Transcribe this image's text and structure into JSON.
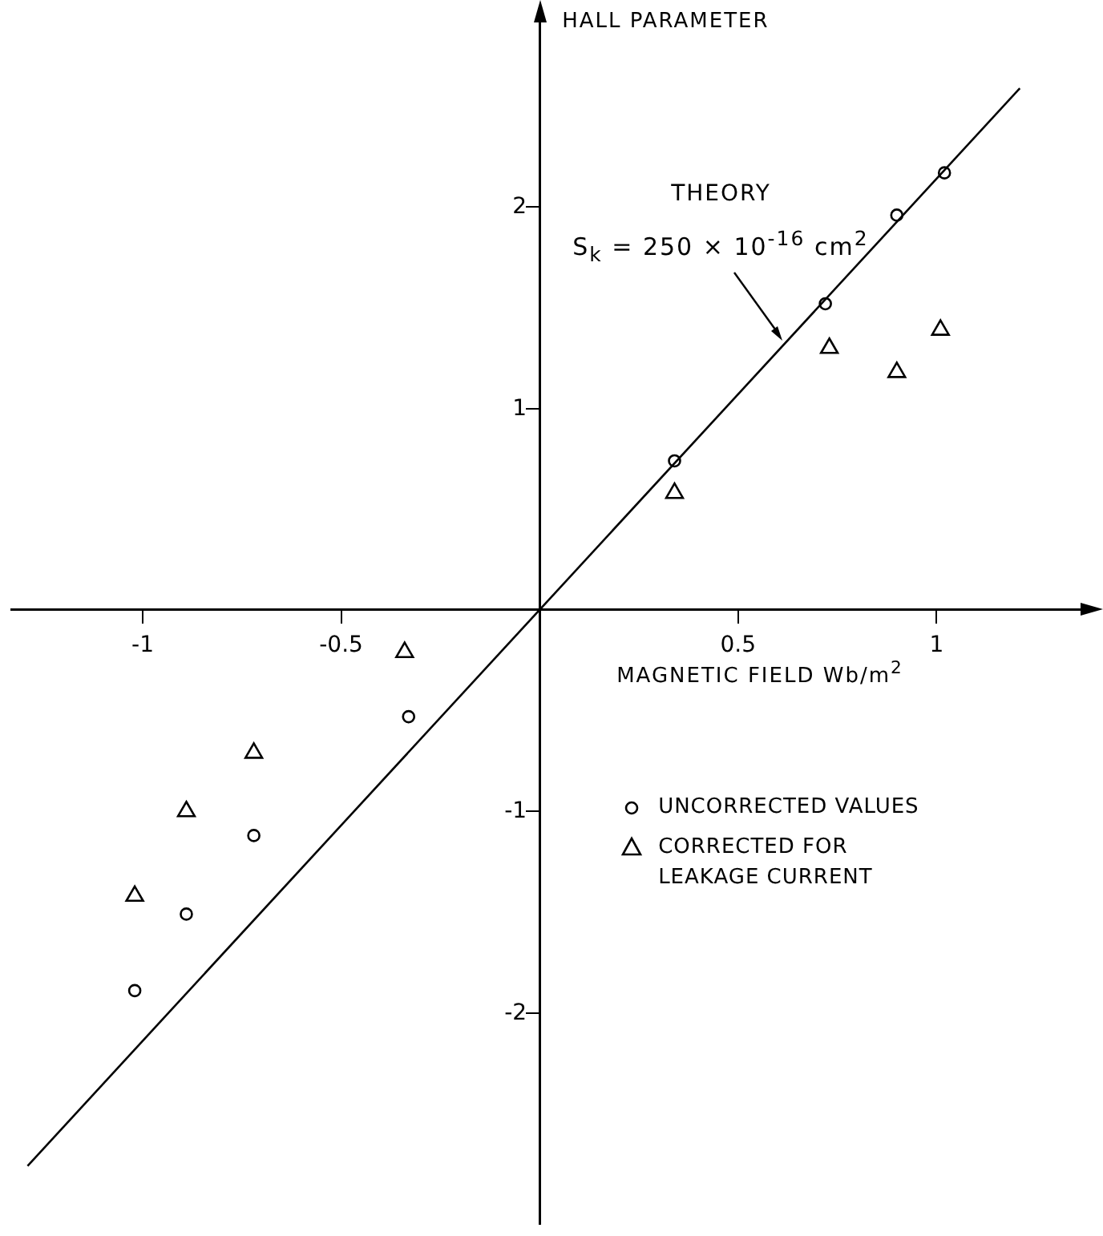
{
  "chart_data": {
    "type": "scatter",
    "xlabel": "MAGNETIC FIELD Wb/m$^{2}$",
    "ylabel": "HALL PARAMETER",
    "xlim": [
      -1.33,
      1.39
    ],
    "ylim": [
      -3.05,
      2.97
    ],
    "xticks": [
      -1,
      -0.5,
      0.5,
      1
    ],
    "yticks": [
      -2,
      -1,
      1,
      2
    ],
    "grid": false,
    "legend": "right",
    "series": [
      {
        "type": "line",
        "color": "#000000",
        "marker": "none",
        "line_style": "solid",
        "x": [
          -1.29,
          1.21
        ],
        "values": [
          -2.76,
          2.59
        ]
      },
      {
        "name": "UNCORRECTED VALUES",
        "color": "#000000",
        "marker": "circle",
        "x": [
          0.34,
          0.72,
          0.9,
          1.02,
          -0.33,
          -0.72,
          -0.89,
          -1.02
        ],
        "values": [
          0.74,
          1.52,
          1.96,
          2.17,
          -0.53,
          -1.12,
          -1.51,
          -1.89
        ]
      },
      {
        "name": "CORRECTED FOR LEAKAGE CURRENT",
        "color": "#000000",
        "marker": "triangle",
        "x": [
          0.34,
          0.73,
          0.9,
          1.01,
          -0.34,
          -0.72,
          -0.89,
          -1.02
        ],
        "values": [
          0.58,
          1.3,
          1.18,
          1.39,
          -0.21,
          -0.71,
          -1.0,
          -1.42
        ]
      }
    ],
    "annotations": [
      "THEORY",
      {
        "text": "S$_{k}$ = 250 × 10$^{-16}$ cm$^{2}$",
        "x": 0.61,
        "y": 1.34
      }
    ]
  }
}
